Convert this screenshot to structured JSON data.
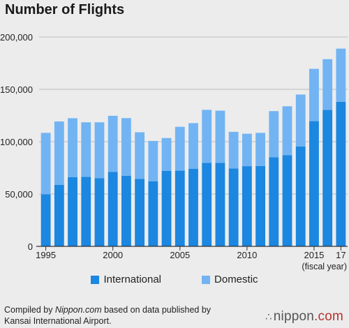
{
  "title": "Number of Flights",
  "colors": {
    "international": "#1b87e0",
    "domestic": "#72b4f3",
    "grid": "#bdbdbd",
    "axis": "#333333"
  },
  "chart_data": {
    "type": "bar",
    "stacked": true,
    "title": "Number of Flights",
    "xlabel": "(fiscal year)",
    "ylabel": "",
    "ylim": [
      0,
      200000
    ],
    "yticks": [
      0,
      50000,
      100000,
      150000,
      200000
    ],
    "ytick_labels": [
      "0",
      "50,000",
      "100,000",
      "150,000",
      "200,000"
    ],
    "categories": [
      "1995",
      "1996",
      "1997",
      "1998",
      "1999",
      "2000",
      "2001",
      "2002",
      "2003",
      "2004",
      "2005",
      "2006",
      "2007",
      "2008",
      "2009",
      "2010",
      "2011",
      "2012",
      "2013",
      "2014",
      "2015",
      "2016",
      "2017"
    ],
    "xtick_labels": [
      {
        "index": 0,
        "label": "1995"
      },
      {
        "index": 5,
        "label": "2000"
      },
      {
        "index": 10,
        "label": "2005"
      },
      {
        "index": 15,
        "label": "2010"
      },
      {
        "index": 20,
        "label": "2015"
      },
      {
        "index": 22,
        "label": "17"
      }
    ],
    "grid": true,
    "legend": "bottom",
    "series": [
      {
        "name": "International",
        "color": "#1b87e0",
        "values": [
          49800,
          58800,
          66000,
          66400,
          65200,
          71000,
          67500,
          64500,
          62200,
          72200,
          72300,
          74200,
          79800,
          79700,
          74400,
          76600,
          76700,
          85000,
          87000,
          95500,
          119600,
          130300,
          138100
        ]
      },
      {
        "name": "Domestic",
        "color": "#72b4f3",
        "values": [
          58600,
          60500,
          56400,
          52100,
          53300,
          53700,
          55000,
          44500,
          38500,
          31300,
          41900,
          43500,
          50600,
          49900,
          35000,
          31000,
          31700,
          44200,
          46800,
          49500,
          50000,
          48500,
          50800
        ]
      }
    ]
  },
  "legend": {
    "international_label": "International",
    "domestic_label": "Domestic"
  },
  "footer": {
    "prefix": "Compiled by ",
    "source_name": "Nippon.com",
    "suffix": " based on data published by",
    "line2": "Kansai International Airport."
  },
  "logo": {
    "mark": "∴",
    "name": "nippon",
    "tld": ".com"
  }
}
